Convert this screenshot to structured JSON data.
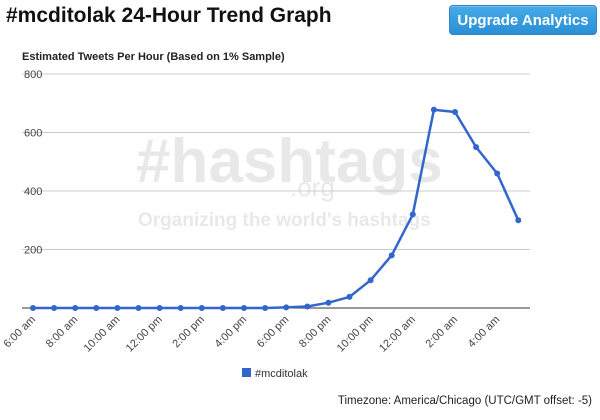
{
  "header": {
    "title": "#mcditolak 24-Hour Trend Graph",
    "upgrade_label": "Upgrade Analytics",
    "accent_color": "#3399dd"
  },
  "watermark": {
    "logo_text": "#hashtags",
    "logo_suffix": ".org",
    "tagline": "Organizing the world's hashtags"
  },
  "chart_data": {
    "type": "line",
    "title": "Estimated Tweets Per Hour (Based on 1% Sample)",
    "xlabel": "",
    "ylabel": "",
    "ylim": [
      0,
      800
    ],
    "yticks": [
      200,
      400,
      600,
      800
    ],
    "grid": true,
    "legend_position": "bottom",
    "line_color": "#3366cc",
    "x": [
      "6:00 am",
      "7:00 am",
      "8:00 am",
      "9:00 am",
      "10:00 am",
      "11:00 am",
      "12:00 pm",
      "1:00 pm",
      "2:00 pm",
      "3:00 pm",
      "4:00 pm",
      "5:00 pm",
      "6:00 pm",
      "7:00 pm",
      "8:00 pm",
      "9:00 pm",
      "10:00 pm",
      "11:00 pm",
      "12:00 am",
      "1:00 am",
      "2:00 am",
      "3:00 am",
      "4:00 am",
      "5:00 am"
    ],
    "x_tick_labels": [
      "6:00 am",
      "8:00 am",
      "10:00 am",
      "12:00 pm",
      "2:00 pm",
      "4:00 pm",
      "6:00 pm",
      "8:00 pm",
      "10:00 pm",
      "12:00 am",
      "2:00 am",
      "4:00 am"
    ],
    "series": [
      {
        "name": "#mcditolak",
        "values": [
          0,
          0,
          0,
          0,
          0,
          0,
          0,
          0,
          0,
          0,
          0,
          0,
          2,
          5,
          18,
          38,
          95,
          180,
          320,
          678,
          670,
          550,
          460,
          300
        ]
      }
    ]
  },
  "footer": {
    "timezone": "Timezone: America/Chicago (UTC/GMT offset: -5)"
  }
}
